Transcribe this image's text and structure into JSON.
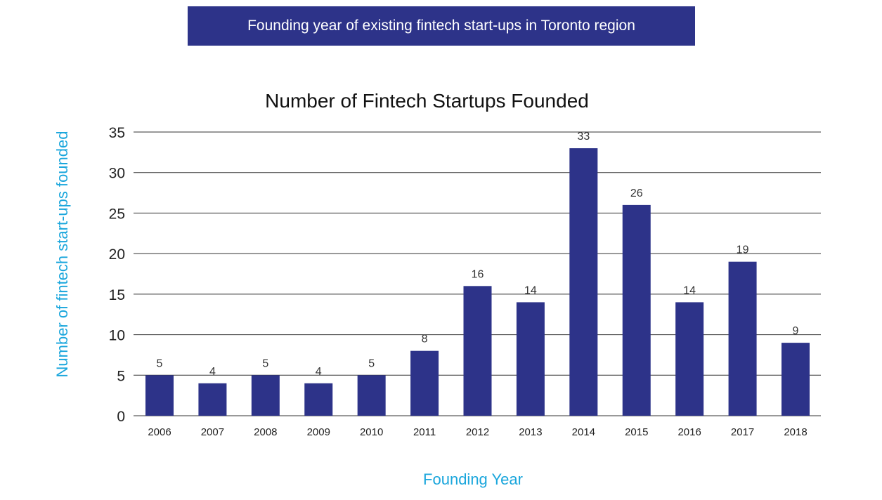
{
  "banner": {
    "text": "Founding year of existing fintech start-ups in Toronto region"
  },
  "chart_data": {
    "type": "bar",
    "title": "Number of Fintech Startups Founded",
    "xlabel": "Founding Year",
    "ylabel": "Number of fintech start-ups founded",
    "categories": [
      "2006",
      "2007",
      "2008",
      "2009",
      "2010",
      "2011",
      "2012",
      "2013",
      "2014",
      "2015",
      "2016",
      "2017",
      "2018"
    ],
    "values": [
      5,
      4,
      5,
      4,
      5,
      8,
      16,
      14,
      33,
      26,
      14,
      19,
      9
    ],
    "ylim": [
      0,
      35
    ],
    "yticks": [
      0,
      5,
      10,
      15,
      20,
      25,
      30,
      35
    ],
    "grid": true,
    "bar_color": "#2d3389",
    "label_color": "#1aa6dc"
  }
}
